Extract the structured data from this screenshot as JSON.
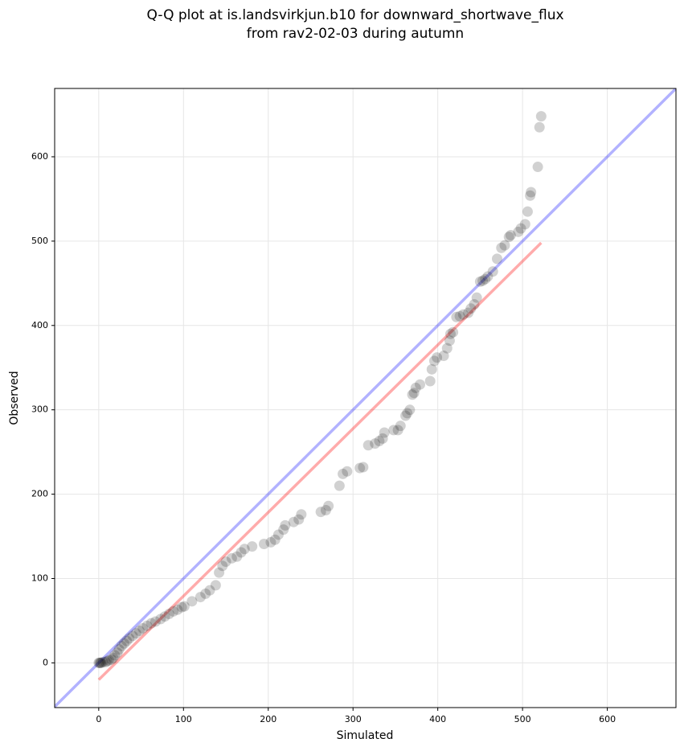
{
  "chart_data": {
    "type": "scatter",
    "title": [
      "Q-Q plot at is.landsvirkjun.b10 for downward_shortwave_flux",
      "from rav2-02-03 during autumn"
    ],
    "x_label": "Simulated",
    "y_label": "Observed",
    "xlim": [
      -52,
      681
    ],
    "ylim": [
      -53,
      681
    ],
    "xticks": [
      0,
      100,
      200,
      300,
      400,
      500,
      600
    ],
    "yticks": [
      0,
      100,
      200,
      300,
      400,
      500,
      600
    ],
    "grid": true,
    "series": [
      {
        "kind": "line",
        "color": "#0000ff",
        "opacity": 0.3,
        "x": [
          -52,
          681
        ],
        "values": [
          -52,
          681
        ]
      },
      {
        "kind": "line",
        "color": "#ff0000",
        "opacity": 0.33,
        "x": [
          0,
          522
        ],
        "values": [
          -20,
          498
        ]
      },
      {
        "kind": "scatter",
        "color": "#000000",
        "opacity": 0.18,
        "x": [
          0,
          1,
          2,
          3,
          5,
          8,
          10,
          12,
          15,
          17,
          19,
          22,
          24,
          27,
          30,
          33,
          36,
          40,
          44,
          48,
          52,
          57,
          62,
          67,
          73,
          78,
          83,
          88,
          93,
          98,
          101,
          110,
          120,
          126,
          131,
          138,
          142,
          146,
          150,
          157,
          163,
          168,
          172,
          181,
          195,
          203,
          208,
          212,
          218,
          220,
          230,
          236,
          239,
          262,
          268,
          271,
          284,
          288,
          293,
          308,
          312,
          318,
          326,
          331,
          335,
          337,
          348,
          353,
          356,
          362,
          364,
          367,
          370,
          372,
          374,
          379,
          391,
          393,
          396,
          399,
          407,
          411,
          414,
          415,
          418,
          422,
          426,
          430,
          436,
          439,
          443,
          446,
          450,
          453,
          456,
          459,
          465,
          470,
          475,
          479,
          484,
          486,
          495,
          498,
          503,
          506,
          509,
          510,
          518,
          520,
          522
        ],
        "values": [
          0,
          0,
          0,
          0,
          1,
          1,
          2,
          3,
          4,
          6,
          9,
          12,
          16,
          20,
          23,
          26,
          29,
          32,
          35,
          38,
          41,
          44,
          47,
          49,
          52,
          55,
          58,
          61,
          63,
          66,
          67,
          73,
          78,
          82,
          86,
          92,
          107,
          115,
          120,
          124,
          126,
          131,
          135,
          138,
          141,
          143,
          146,
          152,
          158,
          163,
          167,
          170,
          176,
          179,
          181,
          186,
          210,
          224,
          227,
          231,
          232,
          258,
          260,
          263,
          266,
          273,
          276,
          276,
          281,
          293,
          296,
          300,
          318,
          320,
          326,
          330,
          334,
          348,
          358,
          362,
          364,
          373,
          382,
          390,
          392,
          410,
          411,
          413,
          415,
          420,
          425,
          433,
          452,
          453,
          455,
          458,
          464,
          479,
          492,
          495,
          505,
          507,
          511,
          515,
          520,
          535,
          554,
          558,
          588,
          635,
          648
        ]
      }
    ]
  }
}
